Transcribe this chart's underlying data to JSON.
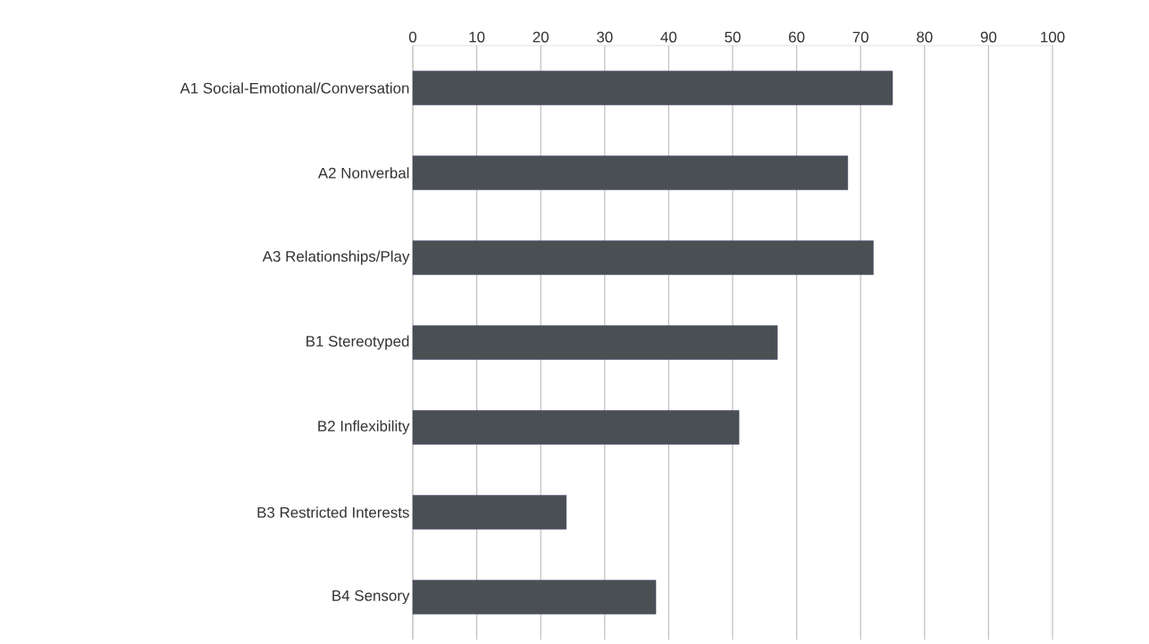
{
  "chart_data": {
    "type": "bar",
    "orientation": "horizontal",
    "categories": [
      "A1 Social-Emotional/Conversation",
      "A2 Nonverbal",
      "A3 Relationships/Play",
      "B1 Stereotyped",
      "B2 Inflexibility",
      "B3 Restricted Interests",
      "B4 Sensory"
    ],
    "values": [
      75,
      68,
      72,
      57,
      51,
      24,
      38
    ],
    "color": "#4a4f53",
    "xlim": [
      0,
      100
    ],
    "xticks": [
      0,
      10,
      20,
      30,
      40,
      50,
      60,
      70,
      80,
      90,
      100
    ],
    "grid": "x"
  }
}
